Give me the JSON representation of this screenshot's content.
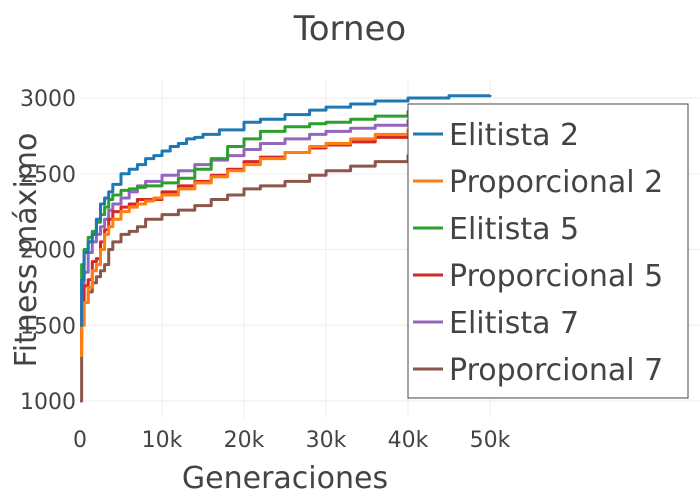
{
  "chart_data": {
    "type": "line",
    "title": "Torneo",
    "xlabel": "Generaciones",
    "ylabel": "Fitness máximo",
    "xlim": [
      0,
      50000
    ],
    "ylim": [
      1000,
      3100
    ],
    "grid": true,
    "legend_position": "right",
    "x_ticks": [
      {
        "value": 0,
        "label": "0"
      },
      {
        "value": 10000,
        "label": "10k"
      },
      {
        "value": 20000,
        "label": "20k"
      },
      {
        "value": 30000,
        "label": "30k"
      },
      {
        "value": 40000,
        "label": "40k"
      },
      {
        "value": 50000,
        "label": "50k"
      }
    ],
    "y_ticks": [
      {
        "value": 1000,
        "label": "1000"
      },
      {
        "value": 1500,
        "label": "1500"
      },
      {
        "value": 2000,
        "label": "2000"
      },
      {
        "value": 2500,
        "label": "2500"
      },
      {
        "value": 3000,
        "label": "3000"
      }
    ],
    "series": [
      {
        "name": "Elitista 2",
        "color": "#1f77b4",
        "x": [
          0,
          200,
          500,
          1000,
          1500,
          2000,
          2500,
          3000,
          3500,
          4000,
          5000,
          6000,
          7000,
          8000,
          9000,
          10000,
          11000,
          12000,
          13000,
          14000,
          15000,
          17000,
          20000,
          22000,
          25000,
          28000,
          30000,
          33000,
          36000,
          40000,
          45000,
          50000
        ],
        "y": [
          1500,
          1800,
          1980,
          2050,
          2100,
          2200,
          2300,
          2340,
          2380,
          2430,
          2500,
          2530,
          2560,
          2600,
          2620,
          2650,
          2680,
          2700,
          2730,
          2740,
          2760,
          2790,
          2840,
          2860,
          2890,
          2920,
          2940,
          2960,
          2980,
          3000,
          3015,
          3020
        ]
      },
      {
        "name": "Proporcional 2",
        "color": "#ff7f0e",
        "x": [
          0,
          200,
          500,
          1000,
          1500,
          2000,
          2500,
          3000,
          3500,
          4000,
          5000,
          6000,
          7000,
          8000,
          9000,
          10000,
          12000,
          14000,
          16000,
          18000,
          20000,
          22000,
          25000,
          28000,
          30000,
          33000,
          36000,
          40000,
          45000,
          50000
        ],
        "y": [
          1300,
          1500,
          1650,
          1750,
          1860,
          1900,
          2000,
          2100,
          2150,
          2200,
          2250,
          2280,
          2300,
          2320,
          2340,
          2360,
          2400,
          2440,
          2480,
          2520,
          2560,
          2600,
          2640,
          2680,
          2700,
          2730,
          2760,
          2790,
          2810,
          2830
        ]
      },
      {
        "name": "Elitista 5",
        "color": "#2ca02c",
        "x": [
          0,
          200,
          500,
          1000,
          1500,
          2000,
          2500,
          3000,
          3500,
          4000,
          5000,
          6000,
          7000,
          8000,
          10000,
          12000,
          14000,
          16000,
          18000,
          20000,
          22000,
          25000,
          28000,
          30000,
          33000,
          36000,
          40000,
          45000,
          50000
        ],
        "y": [
          1700,
          1900,
          2000,
          2080,
          2120,
          2180,
          2230,
          2280,
          2330,
          2360,
          2390,
          2400,
          2410,
          2420,
          2440,
          2470,
          2530,
          2600,
          2680,
          2730,
          2780,
          2810,
          2830,
          2840,
          2860,
          2880,
          2910,
          2940,
          2960
        ]
      },
      {
        "name": "Proporcional 5",
        "color": "#d62728",
        "x": [
          0,
          200,
          500,
          1000,
          1500,
          2000,
          2500,
          3000,
          3500,
          4000,
          5000,
          6000,
          7000,
          8000,
          10000,
          12000,
          14000,
          16000,
          18000,
          20000,
          22000,
          25000,
          28000,
          30000,
          33000,
          36000,
          40000,
          45000,
          50000
        ],
        "y": [
          1400,
          1650,
          1760,
          1800,
          1920,
          1940,
          2050,
          2130,
          2200,
          2250,
          2280,
          2300,
          2330,
          2330,
          2380,
          2420,
          2450,
          2490,
          2530,
          2580,
          2610,
          2640,
          2670,
          2690,
          2710,
          2740,
          2770,
          2780,
          2790
        ]
      },
      {
        "name": "Elitista 7",
        "color": "#9467bd",
        "x": [
          0,
          200,
          500,
          1000,
          1500,
          2000,
          2500,
          3000,
          3500,
          4000,
          5000,
          6000,
          7000,
          8000,
          10000,
          12000,
          14000,
          16000,
          18000,
          20000,
          22000,
          25000,
          28000,
          30000,
          33000,
          36000,
          40000,
          45000,
          50000
        ],
        "y": [
          1550,
          1700,
          1850,
          1980,
          2050,
          2100,
          2150,
          2200,
          2260,
          2300,
          2340,
          2380,
          2420,
          2450,
          2490,
          2520,
          2560,
          2590,
          2620,
          2660,
          2700,
          2730,
          2760,
          2780,
          2800,
          2820,
          2850,
          2880,
          2900
        ]
      },
      {
        "name": "Proporcional 7",
        "color": "#8c564b",
        "x": [
          0,
          200,
          500,
          1000,
          1500,
          2000,
          2500,
          3000,
          3500,
          4000,
          5000,
          6000,
          7000,
          8000,
          10000,
          12000,
          14000,
          16000,
          18000,
          20000,
          22000,
          25000,
          28000,
          30000,
          33000,
          36000,
          40000,
          45000,
          50000
        ],
        "y": [
          1000,
          1500,
          1650,
          1720,
          1780,
          1820,
          1860,
          1900,
          2000,
          2050,
          2100,
          2120,
          2150,
          2200,
          2230,
          2260,
          2290,
          2330,
          2360,
          2400,
          2420,
          2450,
          2490,
          2520,
          2550,
          2580,
          2620,
          2660,
          2690
        ]
      }
    ]
  }
}
